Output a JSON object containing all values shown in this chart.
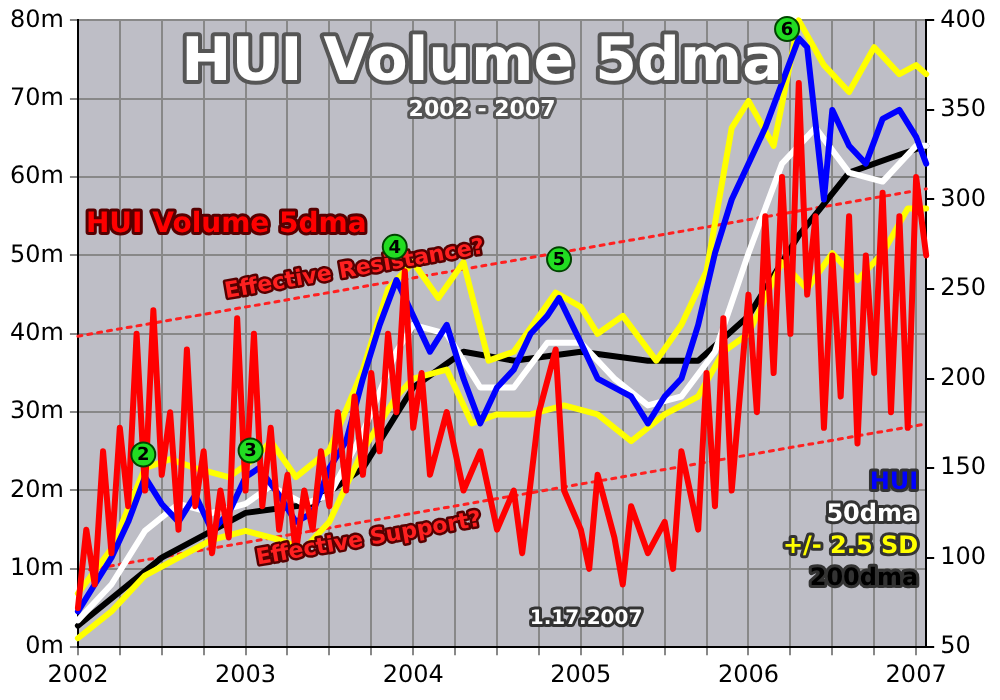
{
  "chart_data": {
    "type": "line",
    "title": "HUI Volume 5dma",
    "subtitle": "2002 - 2007",
    "xlim": [
      2002,
      2007.06
    ],
    "xticks": [
      2002,
      {
        "value": 2002.25,
        "label": null
      },
      {
        "value": 2002.5,
        "label": null
      },
      {
        "value": 2002.75,
        "label": null
      },
      2003,
      {
        "value": 2003.25,
        "label": null
      },
      {
        "value": 2003.5,
        "label": null
      },
      {
        "value": 2003.75,
        "label": null
      },
      2004,
      {
        "value": 2004.25,
        "label": null
      },
      {
        "value": 2004.5,
        "label": null
      },
      {
        "value": 2004.75,
        "label": null
      },
      2005,
      {
        "value": 2005.25,
        "label": null
      },
      {
        "value": 2005.5,
        "label": null
      },
      {
        "value": 2005.75,
        "label": null
      },
      2006,
      {
        "value": 2006.25,
        "label": null
      },
      {
        "value": 2006.5,
        "label": null
      },
      {
        "value": 2006.75,
        "label": null
      },
      2007
    ],
    "ylim": [
      0,
      80
    ],
    "yticks": [
      {
        "value": 0,
        "label": "0m"
      },
      {
        "value": 10,
        "label": "10m"
      },
      {
        "value": 20,
        "label": "20m"
      },
      {
        "value": 30,
        "label": "30m"
      },
      {
        "value": 40,
        "label": "40m"
      },
      {
        "value": 50,
        "label": "50m"
      },
      {
        "value": 60,
        "label": "60m"
      },
      {
        "value": 70,
        "label": "70m"
      },
      {
        "value": 80,
        "label": "80m"
      }
    ],
    "y2lim": [
      50,
      400
    ],
    "y2ticks": [
      50,
      100,
      150,
      200,
      250,
      300,
      350,
      400
    ],
    "grid": true,
    "legend": false,
    "marker": "none",
    "line_style": "solid",
    "series": [
      {
        "name": "HUI Volume 5dma",
        "color": "#ff0000",
        "axis": "y",
        "x": [
          2002,
          2002.05,
          2002.1,
          2002.15,
          2002.2,
          2002.25,
          2002.3,
          2002.35,
          2002.4,
          2002.45,
          2002.5,
          2002.55,
          2002.6,
          2002.65,
          2002.7,
          2002.75,
          2002.8,
          2002.85,
          2002.9,
          2002.95,
          2003,
          2003.05,
          2003.1,
          2003.15,
          2003.2,
          2003.25,
          2003.3,
          2003.35,
          2003.4,
          2003.45,
          2003.5,
          2003.55,
          2003.6,
          2003.65,
          2003.7,
          2003.75,
          2003.8,
          2003.85,
          2003.9,
          2003.95,
          2004,
          2004.05,
          2004.1,
          2004.2,
          2004.3,
          2004.4,
          2004.5,
          2004.6,
          2004.65,
          2004.75,
          2004.85,
          2004.9,
          2005,
          2005.05,
          2005.1,
          2005.2,
          2005.25,
          2005.3,
          2005.4,
          2005.5,
          2005.55,
          2005.6,
          2005.7,
          2005.75,
          2005.8,
          2005.85,
          2005.9,
          2006,
          2006.05,
          2006.1,
          2006.15,
          2006.2,
          2006.25,
          2006.3,
          2006.35,
          2006.4,
          2006.45,
          2006.5,
          2006.55,
          2006.6,
          2006.65,
          2006.7,
          2006.75,
          2006.8,
          2006.85,
          2006.9,
          2006.95,
          2007,
          2007.03,
          2007.06
        ],
        "values": [
          5,
          15,
          8,
          25,
          12,
          28,
          18,
          40,
          20,
          43,
          22,
          30,
          15,
          38,
          18,
          25,
          12,
          20,
          14,
          42,
          20,
          40,
          18,
          28,
          15,
          22,
          12,
          20,
          15,
          25,
          18,
          30,
          20,
          32,
          22,
          35,
          25,
          40,
          30,
          48,
          28,
          35,
          22,
          30,
          20,
          25,
          15,
          20,
          12,
          30,
          38,
          20,
          15,
          10,
          22,
          14,
          8,
          18,
          12,
          16,
          10,
          25,
          15,
          35,
          18,
          42,
          20,
          45,
          30,
          55,
          35,
          60,
          40,
          72,
          45,
          55,
          28,
          50,
          32,
          55,
          26,
          50,
          35,
          58,
          30,
          55,
          28,
          60,
          55,
          50
        ]
      },
      {
        "name": "HUI",
        "color": "#0000ff",
        "axis": "y2",
        "x": [
          2002,
          2002.1,
          2002.2,
          2002.3,
          2002.4,
          2002.5,
          2002.6,
          2002.7,
          2002.8,
          2002.9,
          2003,
          2003.08,
          2003.2,
          2003.3,
          2003.4,
          2003.5,
          2003.6,
          2003.7,
          2003.8,
          2003.9,
          2004,
          2004.1,
          2004.2,
          2004.3,
          2004.4,
          2004.5,
          2004.6,
          2004.7,
          2004.8,
          2004.87,
          2005,
          2005.1,
          2005.2,
          2005.3,
          2005.4,
          2005.5,
          2005.6,
          2005.7,
          2005.8,
          2005.9,
          2006,
          2006.1,
          2006.2,
          2006.3,
          2006.35,
          2006.45,
          2006.5,
          2006.6,
          2006.7,
          2006.8,
          2006.9,
          2007,
          2007.06
        ],
        "values": [
          70,
          85,
          100,
          120,
          145,
          130,
          120,
          135,
          115,
          125,
          145,
          150,
          135,
          120,
          125,
          150,
          165,
          200,
          230,
          255,
          235,
          215,
          230,
          200,
          175,
          195,
          205,
          225,
          235,
          245,
          220,
          200,
          195,
          190,
          175,
          190,
          200,
          230,
          270,
          300,
          320,
          340,
          365,
          390,
          385,
          300,
          350,
          330,
          320,
          345,
          350,
          335,
          320
        ]
      },
      {
        "name": "50dma",
        "color": "#ffffff",
        "axis": "y2",
        "x": [
          2002,
          2002.2,
          2002.4,
          2002.6,
          2002.8,
          2003,
          2003.15,
          2003.35,
          2003.5,
          2003.7,
          2003.9,
          2004,
          2004.2,
          2004.4,
          2004.6,
          2004.8,
          2005,
          2005.2,
          2005.4,
          2005.6,
          2005.8,
          2006,
          2006.2,
          2006.4,
          2006.6,
          2006.8,
          2007,
          2007.06
        ],
        "values": [
          65,
          85,
          115,
          130,
          125,
          130,
          140,
          130,
          135,
          170,
          215,
          230,
          225,
          195,
          195,
          220,
          220,
          200,
          185,
          190,
          215,
          270,
          320,
          340,
          315,
          310,
          330,
          330
        ]
      },
      {
        "name": "+/- 2.5 SD",
        "color": "#ffff00",
        "axis": "y2",
        "x": [
          2002,
          2002.2,
          2002.4,
          2002.55,
          2002.7,
          2002.9,
          2003.05,
          2003.15,
          2003.3,
          2003.5,
          2003.7,
          2003.85,
          2004,
          2004.15,
          2004.3,
          2004.45,
          2004.6,
          2004.85,
          2005,
          2005.1,
          2005.25,
          2005.45,
          2005.6,
          2005.75,
          2005.9,
          2006,
          2006.15,
          2006.3,
          2006.45,
          2006.6,
          2006.75,
          2006.9,
          2007,
          2007.06
        ],
        "values": [
          80,
          105,
          150,
          155,
          150,
          145,
          155,
          165,
          145,
          160,
          205,
          250,
          265,
          245,
          265,
          210,
          215,
          248,
          240,
          225,
          235,
          210,
          230,
          260,
          340,
          355,
          330,
          400,
          375,
          360,
          385,
          370,
          375,
          370
        ]
      },
      {
        "color": "#ffff00",
        "axis": "y2",
        "x": [
          2002,
          2002.2,
          2002.4,
          2002.6,
          2002.8,
          2003,
          2003.2,
          2003.35,
          2003.5,
          2003.7,
          2003.9,
          2004,
          2004.2,
          2004.35,
          2004.5,
          2004.7,
          2004.9,
          2005.1,
          2005.3,
          2005.5,
          2005.7,
          2005.85,
          2006,
          2006.2,
          2006.35,
          2006.5,
          2006.65,
          2006.8,
          2006.95,
          2007.06
        ],
        "values": [
          55,
          70,
          90,
          100,
          110,
          115,
          110,
          105,
          120,
          160,
          190,
          200,
          205,
          175,
          180,
          180,
          185,
          180,
          165,
          180,
          190,
          215,
          225,
          265,
          250,
          270,
          255,
          270,
          295,
          295
        ]
      },
      {
        "name": "200dma",
        "color": "#000000",
        "axis": "y2",
        "x": [
          2002,
          2002.5,
          2003,
          2003.4,
          2003.7,
          2004,
          2004.3,
          2004.6,
          2005,
          2005.4,
          2005.7,
          2006,
          2006.3,
          2006.6,
          2006.9,
          2007.06
        ],
        "values": [
          62,
          100,
          125,
          130,
          150,
          195,
          215,
          210,
          215,
          210,
          210,
          235,
          280,
          315,
          325,
          330
        ]
      },
      {
        "name": "Effective Resistance?",
        "type": "line",
        "line_style": "dotted",
        "color": "#ff2020",
        "axis": "y",
        "x": [
          2002,
          2007.06
        ],
        "values": [
          39.7,
          58.5
        ]
      },
      {
        "name": "Effective Support?",
        "type": "line",
        "line_style": "dotted",
        "color": "#ff2020",
        "axis": "y",
        "x": [
          2002.07,
          2007.06
        ],
        "values": [
          9.9,
          28.5
        ]
      }
    ],
    "annotations": [
      {
        "text": "2",
        "x": 2002.39,
        "y": 24.6
      },
      {
        "text": "3",
        "x": 2003.03,
        "y": 25.1
      },
      {
        "text": "4",
        "x": 2003.89,
        "y": 51.1
      },
      {
        "text": "5",
        "x": 2004.87,
        "y": 49.5
      },
      {
        "text": "6",
        "x": 2006.23,
        "y": 78.9
      },
      "1.17.2007"
    ]
  }
}
